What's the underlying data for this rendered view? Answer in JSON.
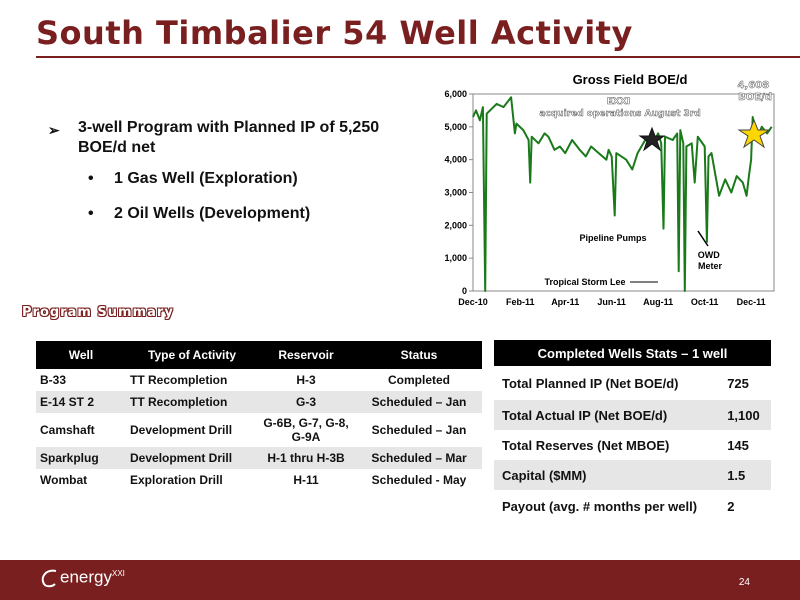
{
  "title": "South Timbalier 54 Well Activity",
  "bullets": {
    "main": "3-well Program with Planned IP of 5,250 BOE/d net",
    "sub": [
      "1 Gas Well (Exploration)",
      "2 Oil Wells (Development)"
    ]
  },
  "chart_data": {
    "type": "line",
    "title": "Gross Field BOE/d",
    "x_labels": [
      "Dec-10",
      "Feb-11",
      "Apr-11",
      "Jun-11",
      "Aug-11",
      "Oct-11",
      "Dec-11"
    ],
    "y_ticks": [
      "0",
      "1,000",
      "2,000",
      "3,000",
      "4,000",
      "5,000",
      "6,000"
    ],
    "ylim": [
      0,
      6000
    ],
    "grid": false,
    "series": [
      {
        "values": [
          [
            "2010-12-01",
            5300
          ],
          [
            "2010-12-05",
            5500
          ],
          [
            "2010-12-10",
            5200
          ],
          [
            "2010-12-14",
            5600
          ],
          [
            "2010-12-17",
            0
          ],
          [
            "2010-12-19",
            5400
          ],
          [
            "2011-01-01",
            5700
          ],
          [
            "2011-01-10",
            5600
          ],
          [
            "2011-01-20",
            5900
          ],
          [
            "2011-01-25",
            4800
          ],
          [
            "2011-01-27",
            5100
          ],
          [
            "2011-02-05",
            4900
          ],
          [
            "2011-02-12",
            4600
          ],
          [
            "2011-02-14",
            3300
          ],
          [
            "2011-02-16",
            4700
          ],
          [
            "2011-02-25",
            4500
          ],
          [
            "2011-03-05",
            4800
          ],
          [
            "2011-03-10",
            4700
          ],
          [
            "2011-03-18",
            4300
          ],
          [
            "2011-03-25",
            4400
          ],
          [
            "2011-04-01",
            4200
          ],
          [
            "2011-04-10",
            4600
          ],
          [
            "2011-04-20",
            4300
          ],
          [
            "2011-04-28",
            4100
          ],
          [
            "2011-05-05",
            4400
          ],
          [
            "2011-05-15",
            4200
          ],
          [
            "2011-05-25",
            4000
          ],
          [
            "2011-05-28",
            4300
          ],
          [
            "2011-06-01",
            4100
          ],
          [
            "2011-06-05",
            2300
          ],
          [
            "2011-06-07",
            4200
          ],
          [
            "2011-06-20",
            4000
          ],
          [
            "2011-06-28",
            3700
          ],
          [
            "2011-07-05",
            4200
          ],
          [
            "2011-07-15",
            4600
          ],
          [
            "2011-07-25",
            4500
          ],
          [
            "2011-08-01",
            4800
          ],
          [
            "2011-08-05",
            4500
          ],
          [
            "2011-08-08",
            1900
          ],
          [
            "2011-08-10",
            4700
          ],
          [
            "2011-08-20",
            4600
          ],
          [
            "2011-08-26",
            4800
          ],
          [
            "2011-08-28",
            600
          ],
          [
            "2011-08-30",
            4900
          ],
          [
            "2011-09-03",
            4500
          ],
          [
            "2011-09-05",
            0
          ],
          [
            "2011-09-07",
            4400
          ],
          [
            "2011-09-14",
            4500
          ],
          [
            "2011-09-18",
            3300
          ],
          [
            "2011-09-22",
            4700
          ],
          [
            "2011-10-01",
            4400
          ],
          [
            "2011-10-04",
            1500
          ],
          [
            "2011-10-06",
            4100
          ],
          [
            "2011-10-10",
            4200
          ],
          [
            "2011-10-20",
            2900
          ],
          [
            "2011-10-28",
            3400
          ],
          [
            "2011-11-05",
            3000
          ],
          [
            "2011-11-12",
            3500
          ],
          [
            "2011-11-20",
            3300
          ],
          [
            "2011-11-25",
            2900
          ],
          [
            "2011-11-28",
            3500
          ],
          [
            "2011-12-01",
            4000
          ],
          [
            "2011-12-03",
            5300
          ],
          [
            "2011-12-08",
            4600
          ],
          [
            "2011-12-15",
            5000
          ],
          [
            "2011-12-22",
            4800
          ],
          [
            "2011-12-28",
            5000
          ]
        ]
      }
    ],
    "annotations": {
      "exxi": "EXXI acquired operations August 3rd",
      "boe": "4,608 BOE/d",
      "pipeline": "Pipeline Pumps",
      "storm": "Tropical Storm Lee",
      "owd": "OWD Meter"
    },
    "line_color": "#1a7a1a"
  },
  "program_summary_label": "Program Summary",
  "program_table": {
    "headers": [
      "Well",
      "Type of Activity",
      "Reservoir",
      "Status"
    ],
    "rows": [
      [
        "B-33",
        "TT Recompletion",
        "H-3",
        "Completed"
      ],
      [
        "E-14 ST 2",
        "TT Recompletion",
        "G-3",
        "Scheduled – Jan"
      ],
      [
        "Camshaft",
        "Development Drill",
        "G-6B, G-7, G-8, G-9A",
        "Scheduled – Jan"
      ],
      [
        "Sparkplug",
        "Development Drill",
        "H-1 thru H-3B",
        "Scheduled – Mar"
      ],
      [
        "Wombat",
        "Exploration Drill",
        "H-11",
        "Scheduled - May"
      ]
    ]
  },
  "stats_table": {
    "header": "Completed Wells Stats – 1 well",
    "rows": [
      [
        "Total Planned IP (Net BOE/d)",
        "725"
      ],
      [
        "Total Actual IP (Net BOE/d)",
        "1,100"
      ],
      [
        "Total Reserves (Net MBOE)",
        "145"
      ],
      [
        "Capital ($MM)",
        "1.5"
      ],
      [
        "Payout (avg. # months per well)",
        "2"
      ]
    ]
  },
  "footer": {
    "logo_text": "energy",
    "logo_sup": "XXI",
    "page_number": "24"
  },
  "colors": {
    "brand": "#7a1f1f",
    "line": "#1a7a1a",
    "star": "#ffd700"
  }
}
